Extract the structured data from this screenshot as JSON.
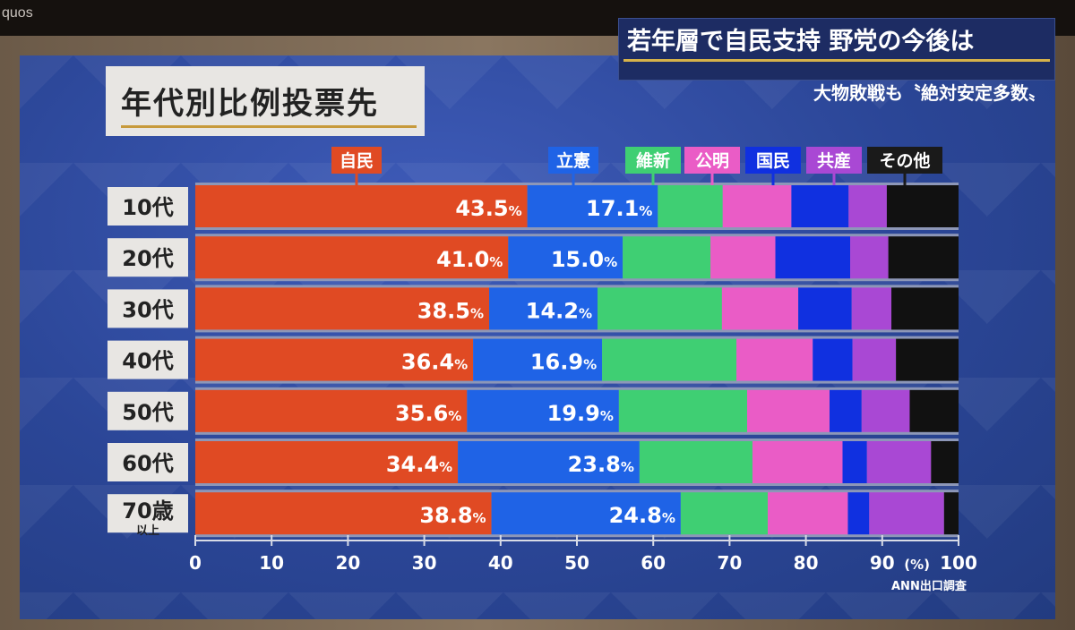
{
  "tv": {
    "brand": "quos"
  },
  "headline": "若年層で自民支持  野党の今後は",
  "subheadline": "大物敗戦も〝絶対安定多数〟",
  "chart_title": "年代別比例投票先",
  "source": "ANN出口調査",
  "colors": {
    "自民": "#e04a23",
    "立憲": "#1f63e6",
    "維新": "#3fcf73",
    "公明": "#ea5cc6",
    "国民": "#1030e0",
    "共産": "#a948d4",
    "その他": "#111111"
  },
  "chart_data": {
    "type": "bar",
    "orientation": "horizontal",
    "stacked": true,
    "title": "年代別比例投票先",
    "categories": [
      "10代",
      "20代",
      "30代",
      "40代",
      "50代",
      "60代",
      "70歳以上"
    ],
    "series": [
      {
        "name": "自民",
        "values": [
          43.5,
          41.0,
          38.5,
          36.4,
          35.6,
          34.4,
          38.8
        ],
        "labels": [
          "43.5%",
          "41.0%",
          "38.5%",
          "36.4%",
          "35.6%",
          "34.4%",
          "38.8%"
        ]
      },
      {
        "name": "立憲",
        "values": [
          17.1,
          15.0,
          14.2,
          16.9,
          19.9,
          23.8,
          24.8
        ],
        "labels": [
          "17.1%",
          "15.0%",
          "14.2%",
          "16.9%",
          "19.9%",
          "23.8%",
          "24.8%"
        ]
      },
      {
        "name": "維新",
        "values": [
          8.5,
          11.5,
          16.3,
          17.6,
          16.8,
          14.8,
          11.4
        ]
      },
      {
        "name": "公明",
        "values": [
          9.0,
          8.5,
          10.0,
          10.0,
          10.8,
          11.8,
          10.5
        ]
      },
      {
        "name": "国民",
        "values": [
          7.5,
          9.8,
          7.0,
          5.2,
          4.2,
          3.2,
          2.8
        ]
      },
      {
        "name": "共産",
        "values": [
          5.0,
          5.0,
          5.2,
          5.7,
          6.3,
          8.4,
          9.8
        ]
      },
      {
        "name": "その他",
        "values": [
          9.4,
          9.2,
          8.8,
          8.2,
          6.4,
          3.6,
          1.9
        ]
      }
    ],
    "xlim": [
      0,
      100
    ],
    "xticks": [
      0,
      10,
      20,
      30,
      40,
      50,
      60,
      70,
      80,
      90,
      100
    ],
    "x_unit": "(%)",
    "legend_position": "top"
  }
}
